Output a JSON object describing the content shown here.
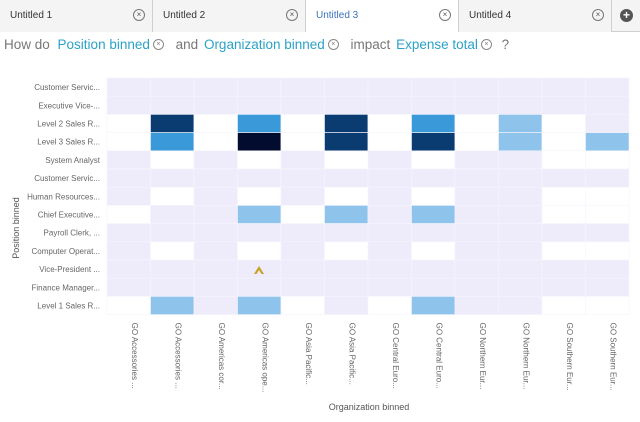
{
  "tabs": [
    {
      "label": "Untitled 1",
      "active": false
    },
    {
      "label": "Untitled 2",
      "active": false
    },
    {
      "label": "Untitled 3",
      "active": true
    },
    {
      "label": "Untitled 4",
      "active": false
    }
  ],
  "tab_close_icon": "×",
  "tab_add_icon": "+",
  "question": {
    "prefix": "How do",
    "field1": "Position binned",
    "and": "and",
    "field2": "Organization binned",
    "impact": "impact",
    "measure": "Expense total",
    "suffix": "?",
    "remove_icon": "×"
  },
  "chart_data": {
    "type": "heatmap",
    "xlabel": "Organization binned",
    "ylabel": "Position binned",
    "rows": [
      "Customer Servic...",
      "Executive Vice-...",
      "Level 2 Sales R...",
      "Level 3 Sales R...",
      "System Analyst",
      "Customer Servic...",
      "Human Resources...",
      "Chief Executive...",
      "Payroll Clerk, ...",
      "Computer Operat...",
      "Vice-President ...",
      "Finance Manager...",
      "Level 1 Sales R..."
    ],
    "columns": [
      "GO Accessories ...",
      "GO Accessories ...",
      "GO Americas cor...",
      "GO Americas ope...",
      "GO Asia Pacific...",
      "GO Asia Pacific...",
      "GO Central Euro...",
      "GO Central Euro...",
      "GO Northern Eur...",
      "GO Northern Eur...",
      "GO Southern Eur...",
      "GO Southern Eur..."
    ],
    "values": [
      [
        0,
        0,
        0,
        0,
        0,
        0,
        0,
        0,
        0,
        0,
        0,
        0
      ],
      [
        0,
        0,
        0,
        0,
        0,
        0,
        0,
        0,
        0,
        0,
        0,
        0
      ],
      [
        1,
        5,
        1,
        4,
        1,
        5,
        1,
        4,
        1,
        3,
        1,
        0
      ],
      [
        1,
        4,
        1,
        6,
        1,
        5,
        1,
        5,
        1,
        3,
        1,
        3
      ],
      [
        0,
        1,
        0,
        1,
        0,
        1,
        0,
        1,
        0,
        0,
        1,
        1
      ],
      [
        0,
        0,
        0,
        0,
        0,
        0,
        0,
        0,
        0,
        0,
        0,
        0
      ],
      [
        0,
        1,
        0,
        1,
        0,
        1,
        0,
        1,
        0,
        0,
        1,
        1
      ],
      [
        1,
        0,
        0,
        3,
        1,
        3,
        0,
        3,
        0,
        0,
        1,
        1
      ],
      [
        0,
        0,
        0,
        0,
        0,
        0,
        0,
        0,
        0,
        0,
        0,
        0
      ],
      [
        0,
        1,
        0,
        1,
        0,
        1,
        0,
        1,
        0,
        0,
        1,
        1
      ],
      [
        0,
        0,
        0,
        0,
        0,
        0,
        0,
        0,
        0,
        0,
        0,
        0
      ],
      [
        0,
        0,
        0,
        0,
        0,
        0,
        0,
        0,
        0,
        0,
        0,
        0
      ],
      [
        1,
        3,
        0,
        3,
        1,
        0,
        1,
        3,
        0,
        0,
        1,
        1
      ]
    ],
    "colors": {
      "0": "#eeecfb",
      "1": "#ffffff",
      "3": "#8ec4ec",
      "4": "#3a9ad9",
      "5": "#0a3c72",
      "6": "#020c2e"
    }
  },
  "cursor_icon": "caret-up-icon",
  "cursor_color": "#c8a020"
}
